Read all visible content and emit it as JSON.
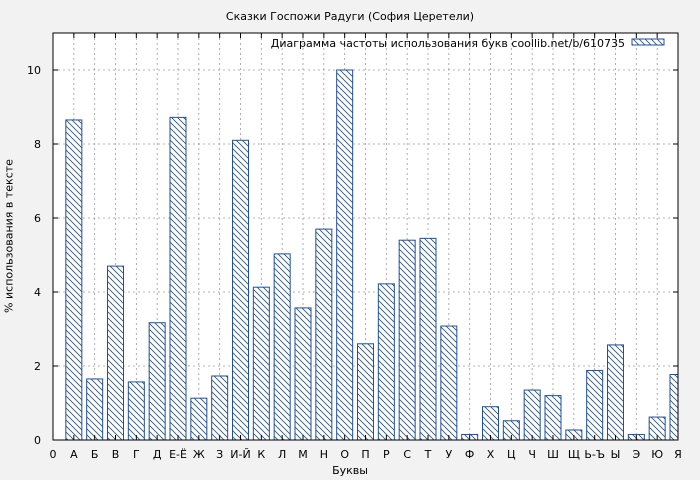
{
  "chart_data": {
    "type": "bar",
    "title": "Сказки Госпожи Радуги (София Церетели)",
    "xlabel": "Буквы",
    "ylabel": "% использования в тексте",
    "legend": "Диаграмма частоты использования букв coollib.net/b/610735",
    "legend_position": "top-right",
    "grid": true,
    "ylim": [
      0,
      11
    ],
    "yticks": [
      0,
      2,
      4,
      6,
      8,
      10
    ],
    "categories": [
      "0",
      "А",
      "Б",
      "В",
      "Г",
      "Д",
      "Е-Ё",
      "Ж",
      "З",
      "И-Й",
      "К",
      "Л",
      "М",
      "Н",
      "О",
      "П",
      "Р",
      "С",
      "Т",
      "У",
      "Ф",
      "Х",
      "Ц",
      "Ч",
      "Ш",
      "Щ",
      "Ь-Ъ",
      "Ы",
      "Э",
      "Ю",
      "Я"
    ],
    "values": [
      0,
      8.65,
      1.65,
      4.7,
      1.57,
      3.17,
      8.72,
      1.13,
      1.73,
      8.1,
      4.13,
      5.03,
      3.57,
      5.7,
      10.0,
      2.6,
      4.22,
      5.4,
      5.45,
      3.08,
      0.15,
      0.9,
      0.52,
      1.35,
      1.2,
      0.27,
      1.88,
      2.57,
      0.15,
      0.62,
      1.77
    ],
    "colors": {
      "bar_stroke": "#1f4f9e",
      "grid": "#9a9a9a",
      "plot_bg": "#ffffff",
      "page_bg": "#f2f2f2"
    }
  }
}
